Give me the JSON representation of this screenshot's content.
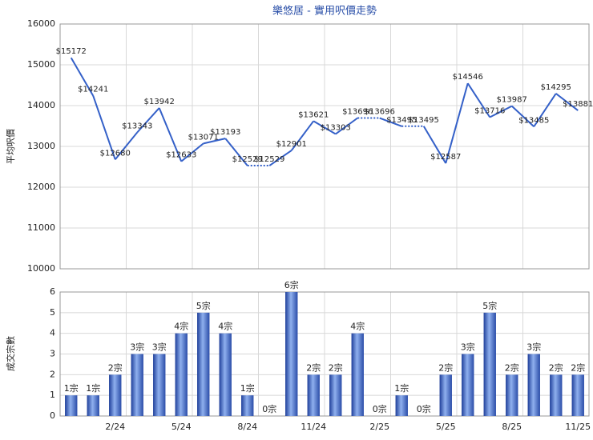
{
  "chart_data": [
    {
      "type": "line",
      "title": "樂悠居 - 實用呎價走勢",
      "y_label": "平均呎價",
      "categories": [
        null,
        null,
        "2/24",
        null,
        null,
        "5/24",
        null,
        null,
        "8/24",
        null,
        null,
        "11/24",
        null,
        null,
        "2/25",
        null,
        null,
        "5/25",
        null,
        null,
        "8/25",
        null,
        null,
        "11/25"
      ],
      "series": [
        {
          "name": "平均呎價",
          "color": "#3460c8",
          "values": [
            15172,
            14241,
            12680,
            13343,
            13942,
            12633,
            13071,
            13193,
            12529,
            12529,
            12901,
            13621,
            13303,
            13696,
            13696,
            13495,
            13495,
            12587,
            14546,
            13716,
            13987,
            13485,
            14295,
            13881
          ],
          "value_labels": [
            "$15172",
            "$14241",
            "$12680",
            "$13343",
            "$13942",
            "$12633",
            "$13071",
            "$13193",
            "$12529",
            "$12529",
            "$12901",
            "$13621",
            "$13303",
            "$13696",
            "$13696",
            "$13495",
            "$13495",
            "$12587",
            "$14546",
            "$13716",
            "$13987",
            "$13485",
            "$14295",
            "$13881"
          ]
        }
      ],
      "ylim": [
        10000,
        16000
      ],
      "yticks": [
        10000,
        11000,
        12000,
        13000,
        14000,
        15000,
        16000
      ],
      "grid": true
    },
    {
      "type": "bar",
      "y_label": "成交宗數",
      "categories": [
        null,
        null,
        "2/24",
        null,
        null,
        "5/24",
        null,
        null,
        "8/24",
        null,
        null,
        "11/24",
        null,
        null,
        "2/25",
        null,
        null,
        "5/25",
        null,
        null,
        "8/25",
        null,
        null,
        "11/25"
      ],
      "series": [
        {
          "name": "成交宗數",
          "color": "#3a5cc0",
          "values": [
            1,
            1,
            2,
            3,
            3,
            4,
            5,
            4,
            1,
            0,
            6,
            2,
            2,
            4,
            0,
            1,
            0,
            2,
            3,
            5,
            2,
            3,
            2,
            2
          ],
          "value_labels": [
            "1宗",
            "1宗",
            "2宗",
            "3宗",
            "3宗",
            "4宗",
            "5宗",
            "4宗",
            "1宗",
            "0宗",
            "6宗",
            "2宗",
            "2宗",
            "4宗",
            "0宗",
            "1宗",
            "0宗",
            "2宗",
            "3宗",
            "5宗",
            "2宗",
            "3宗",
            "2宗",
            "2宗"
          ]
        }
      ],
      "ylim": [
        0,
        6
      ],
      "yticks": [
        0,
        1,
        2,
        3,
        4,
        5,
        6
      ],
      "grid": true
    }
  ]
}
